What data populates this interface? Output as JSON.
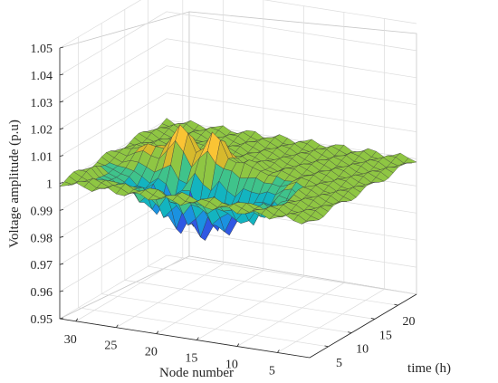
{
  "chart_data": {
    "type": "surface",
    "zlabel": "Voltage amplitude (p.u)",
    "xlabel": "Node number",
    "ylabel": "time (h)",
    "zlim": [
      0.95,
      1.05
    ],
    "z_ticks": [
      "0.95",
      "0.96",
      "0.97",
      "0.98",
      "0.99",
      "1",
      "1.01",
      "1.02",
      "1.03",
      "1.04",
      "1.05"
    ],
    "node_ticks": [
      "30",
      "25",
      "20",
      "15",
      "10",
      "5"
    ],
    "time_ticks": [
      "5",
      "10",
      "15",
      "20"
    ],
    "node_range": [
      1,
      32
    ],
    "time_range": [
      1,
      24
    ],
    "grid": true,
    "colormap": [
      "#3E26A8",
      "#2F58E3",
      "#1B92E0",
      "#13B4C0",
      "#3FC38B",
      "#8FC643",
      "#D7B92D",
      "#FAC434",
      "#F6D61F"
    ],
    "surface_summary": {
      "base_level": 1.0,
      "upper_ridge_max": 1.015,
      "lower_trough_min": 0.978
    }
  }
}
